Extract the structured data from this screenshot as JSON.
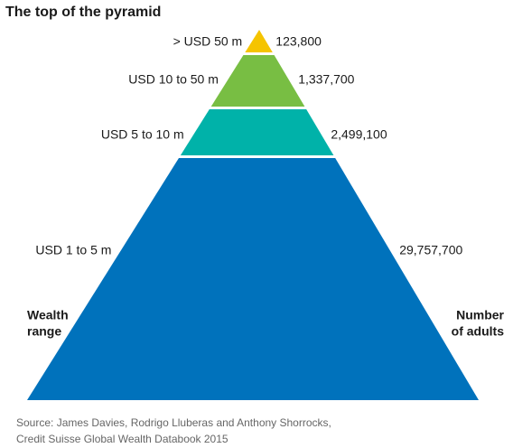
{
  "header": {
    "title": "The top of the pyramid"
  },
  "levels": [
    {
      "range": "> USD 50 m",
      "adults": "123,800"
    },
    {
      "range": "USD 10 to 50 m",
      "adults": "1,337,700"
    },
    {
      "range": "USD 5 to 10 m",
      "adults": "2,499,100"
    },
    {
      "range": "USD 1 to 5 m",
      "adults": "29,757,700"
    }
  ],
  "left_axis_label": [
    "Wealth",
    "range"
  ],
  "right_axis_label": [
    "Number",
    "of adults"
  ],
  "source": [
    "Source: James Davies, Rodrigo Lluberas and Anthony Shorrocks,",
    "Credit Suisse Global Wealth Databook 2015"
  ]
}
